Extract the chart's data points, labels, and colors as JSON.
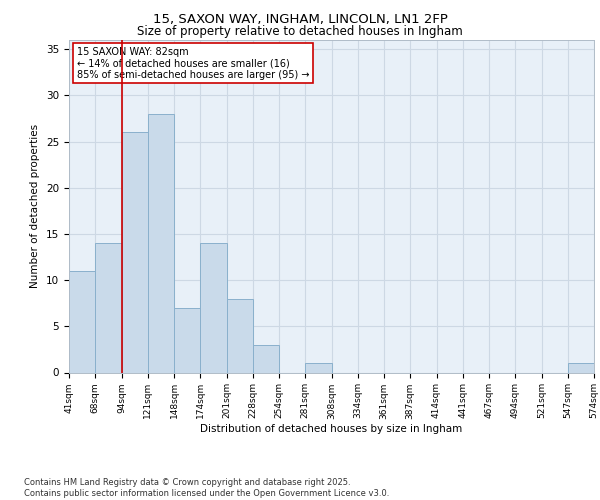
{
  "title_line1": "15, SAXON WAY, INGHAM, LINCOLN, LN1 2FP",
  "title_line2": "Size of property relative to detached houses in Ingham",
  "xlabel": "Distribution of detached houses by size in Ingham",
  "ylabel": "Number of detached properties",
  "bar_values": [
    11,
    14,
    26,
    28,
    7,
    14,
    8,
    3,
    0,
    1,
    0,
    0,
    0,
    0,
    0,
    0,
    0,
    0,
    0,
    1
  ],
  "categories": [
    "41sqm",
    "68sqm",
    "94sqm",
    "121sqm",
    "148sqm",
    "174sqm",
    "201sqm",
    "228sqm",
    "254sqm",
    "281sqm",
    "308sqm",
    "334sqm",
    "361sqm",
    "387sqm",
    "414sqm",
    "441sqm",
    "467sqm",
    "494sqm",
    "521sqm",
    "547sqm",
    "574sqm"
  ],
  "bar_color": "#c9daea",
  "bar_edge_color": "#8ab0cc",
  "grid_color": "#cdd8e4",
  "background_color": "#e8f0f8",
  "vline_color": "#cc0000",
  "annotation_box_text": "15 SAXON WAY: 82sqm\n← 14% of detached houses are smaller (16)\n85% of semi-detached houses are larger (95) →",
  "footer_line1": "Contains HM Land Registry data © Crown copyright and database right 2025.",
  "footer_line2": "Contains public sector information licensed under the Open Government Licence v3.0.",
  "ylim": [
    0,
    36
  ],
  "yticks": [
    0,
    5,
    10,
    15,
    20,
    25,
    30,
    35
  ]
}
